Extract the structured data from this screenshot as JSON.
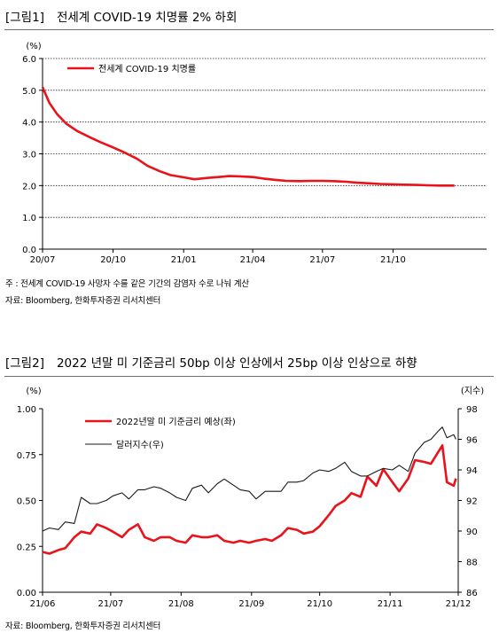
{
  "figure1": {
    "tag": "[그림1]",
    "title": "전세계 COVID-19 치명률 2% 하회",
    "note": "주 : 전세계 COVID-19 사망자 수를 같은 기간의 감염자 수로 나눠 계산",
    "source": "자료: Bloomberg, 한화투자증권 리서치센터"
  },
  "figure2": {
    "tag": "[그림2]",
    "title": "2022 년말 미 기준금리 50bp 이상 인상에서 25bp 이상 인상으로 하향",
    "source": "자료: Bloomberg, 한화투자증권 리서치센터"
  },
  "chart_data": [
    {
      "type": "line",
      "yunit": "(%)",
      "ylim": [
        0,
        6
      ],
      "yticks": [
        "0.0",
        "1.0",
        "2.0",
        "3.0",
        "4.0",
        "5.0",
        "6.0"
      ],
      "xticks": [
        "20/07",
        "20/10",
        "21/01",
        "21/04",
        "21/07",
        "21/10"
      ],
      "xlim": [
        "2020-07-01",
        "2022-01-31"
      ],
      "grid": "horizontal dotted",
      "legend_position": "top-left",
      "series": [
        {
          "name": "전세계  COVID-19  치명률",
          "color": "#e8131b",
          "points": [
            [
              "2020-07-01",
              5.1
            ],
            [
              "2020-07-10",
              4.6
            ],
            [
              "2020-07-20",
              4.25
            ],
            [
              "2020-08-01",
              3.95
            ],
            [
              "2020-08-15",
              3.72
            ],
            [
              "2020-09-01",
              3.52
            ],
            [
              "2020-09-15",
              3.36
            ],
            [
              "2020-10-01",
              3.2
            ],
            [
              "2020-10-15",
              3.05
            ],
            [
              "2020-11-01",
              2.85
            ],
            [
              "2020-11-15",
              2.62
            ],
            [
              "2020-12-01",
              2.45
            ],
            [
              "2020-12-15",
              2.33
            ],
            [
              "2021-01-01",
              2.26
            ],
            [
              "2021-01-15",
              2.2
            ],
            [
              "2021-02-01",
              2.24
            ],
            [
              "2021-02-15",
              2.27
            ],
            [
              "2021-03-01",
              2.3
            ],
            [
              "2021-03-15",
              2.29
            ],
            [
              "2021-04-01",
              2.27
            ],
            [
              "2021-04-15",
              2.22
            ],
            [
              "2021-05-01",
              2.18
            ],
            [
              "2021-05-15",
              2.15
            ],
            [
              "2021-06-01",
              2.14
            ],
            [
              "2021-06-15",
              2.15
            ],
            [
              "2021-07-01",
              2.15
            ],
            [
              "2021-07-15",
              2.14
            ],
            [
              "2021-08-01",
              2.12
            ],
            [
              "2021-08-15",
              2.09
            ],
            [
              "2021-09-01",
              2.07
            ],
            [
              "2021-09-15",
              2.05
            ],
            [
              "2021-10-01",
              2.04
            ],
            [
              "2021-10-15",
              2.03
            ],
            [
              "2021-11-01",
              2.02
            ],
            [
              "2021-11-15",
              2.01
            ],
            [
              "2021-12-01",
              2.0
            ],
            [
              "2021-12-20",
              2.0
            ]
          ]
        }
      ]
    },
    {
      "type": "line",
      "yunit_left": "(%)",
      "yunit_right": "(지수)",
      "ylim_left": [
        0,
        1
      ],
      "ylim_right": [
        86,
        98
      ],
      "yticks_left": [
        "0.00",
        "0.25",
        "0.50",
        "0.75",
        "1.00"
      ],
      "yticks_right": [
        "86",
        "88",
        "90",
        "92",
        "94",
        "96",
        "98"
      ],
      "xticks": [
        "21/06",
        "21/07",
        "21/08",
        "21/09",
        "21/10",
        "21/11",
        "21/12"
      ],
      "xlim": [
        "2021-06-01",
        "2021-12-01"
      ],
      "legend_position": "top-left",
      "series": [
        {
          "name": "2022년말  미 기준금리  예상(좌)",
          "axis": "left",
          "color": "#e8131b",
          "points": [
            [
              "2021-06-01",
              0.22
            ],
            [
              "2021-06-04",
              0.21
            ],
            [
              "2021-06-08",
              0.23
            ],
            [
              "2021-06-11",
              0.24
            ],
            [
              "2021-06-15",
              0.3
            ],
            [
              "2021-06-18",
              0.33
            ],
            [
              "2021-06-22",
              0.32
            ],
            [
              "2021-06-25",
              0.37
            ],
            [
              "2021-06-29",
              0.35
            ],
            [
              "2021-07-02",
              0.33
            ],
            [
              "2021-07-06",
              0.3
            ],
            [
              "2021-07-09",
              0.34
            ],
            [
              "2021-07-13",
              0.37
            ],
            [
              "2021-07-16",
              0.3
            ],
            [
              "2021-07-20",
              0.28
            ],
            [
              "2021-07-23",
              0.3
            ],
            [
              "2021-07-27",
              0.3
            ],
            [
              "2021-07-30",
              0.28
            ],
            [
              "2021-08-03",
              0.27
            ],
            [
              "2021-08-06",
              0.31
            ],
            [
              "2021-08-10",
              0.3
            ],
            [
              "2021-08-13",
              0.3
            ],
            [
              "2021-08-17",
              0.31
            ],
            [
              "2021-08-20",
              0.28
            ],
            [
              "2021-08-24",
              0.27
            ],
            [
              "2021-08-27",
              0.28
            ],
            [
              "2021-08-31",
              0.27
            ],
            [
              "2021-09-03",
              0.28
            ],
            [
              "2021-09-07",
              0.29
            ],
            [
              "2021-09-10",
              0.28
            ],
            [
              "2021-09-14",
              0.31
            ],
            [
              "2021-09-17",
              0.35
            ],
            [
              "2021-09-21",
              0.34
            ],
            [
              "2021-09-24",
              0.32
            ],
            [
              "2021-09-28",
              0.33
            ],
            [
              "2021-10-01",
              0.36
            ],
            [
              "2021-10-05",
              0.42
            ],
            [
              "2021-10-08",
              0.47
            ],
            [
              "2021-10-12",
              0.5
            ],
            [
              "2021-10-15",
              0.54
            ],
            [
              "2021-10-19",
              0.52
            ],
            [
              "2021-10-22",
              0.63
            ],
            [
              "2021-10-26",
              0.58
            ],
            [
              "2021-10-29",
              0.67
            ],
            [
              "2021-11-02",
              0.6
            ],
            [
              "2021-11-05",
              0.55
            ],
            [
              "2021-11-09",
              0.62
            ],
            [
              "2021-11-12",
              0.72
            ],
            [
              "2021-11-16",
              0.71
            ],
            [
              "2021-11-19",
              0.7
            ],
            [
              "2021-11-22",
              0.76
            ],
            [
              "2021-11-24",
              0.8
            ],
            [
              "2021-11-26",
              0.6
            ],
            [
              "2021-11-29",
              0.58
            ],
            [
              "2021-11-30",
              0.62
            ]
          ]
        },
        {
          "name": "달러지수(우)",
          "axis": "right",
          "color": "#1a1a1a",
          "points": [
            [
              "2021-06-01",
              90.0
            ],
            [
              "2021-06-04",
              90.2
            ],
            [
              "2021-06-08",
              90.1
            ],
            [
              "2021-06-11",
              90.6
            ],
            [
              "2021-06-15",
              90.5
            ],
            [
              "2021-06-18",
              92.2
            ],
            [
              "2021-06-22",
              91.8
            ],
            [
              "2021-06-25",
              91.8
            ],
            [
              "2021-06-29",
              92.0
            ],
            [
              "2021-07-02",
              92.3
            ],
            [
              "2021-07-06",
              92.5
            ],
            [
              "2021-07-09",
              92.1
            ],
            [
              "2021-07-13",
              92.7
            ],
            [
              "2021-07-16",
              92.7
            ],
            [
              "2021-07-20",
              92.9
            ],
            [
              "2021-07-23",
              92.8
            ],
            [
              "2021-07-27",
              92.5
            ],
            [
              "2021-07-30",
              92.2
            ],
            [
              "2021-08-03",
              92.0
            ],
            [
              "2021-08-06",
              92.8
            ],
            [
              "2021-08-10",
              93.0
            ],
            [
              "2021-08-13",
              92.5
            ],
            [
              "2021-08-17",
              93.1
            ],
            [
              "2021-08-20",
              93.4
            ],
            [
              "2021-08-24",
              93.0
            ],
            [
              "2021-08-27",
              92.7
            ],
            [
              "2021-08-31",
              92.6
            ],
            [
              "2021-09-03",
              92.1
            ],
            [
              "2021-09-07",
              92.6
            ],
            [
              "2021-09-10",
              92.6
            ],
            [
              "2021-09-14",
              92.6
            ],
            [
              "2021-09-17",
              93.2
            ],
            [
              "2021-09-21",
              93.2
            ],
            [
              "2021-09-24",
              93.3
            ],
            [
              "2021-09-28",
              93.8
            ],
            [
              "2021-10-01",
              94.0
            ],
            [
              "2021-10-05",
              93.9
            ],
            [
              "2021-10-08",
              94.1
            ],
            [
              "2021-10-12",
              94.5
            ],
            [
              "2021-10-15",
              93.9
            ],
            [
              "2021-10-19",
              93.6
            ],
            [
              "2021-10-22",
              93.6
            ],
            [
              "2021-10-26",
              93.9
            ],
            [
              "2021-10-29",
              94.1
            ],
            [
              "2021-11-02",
              94.0
            ],
            [
              "2021-11-05",
              94.3
            ],
            [
              "2021-11-09",
              93.9
            ],
            [
              "2021-11-12",
              95.1
            ],
            [
              "2021-11-16",
              95.8
            ],
            [
              "2021-11-19",
              96.0
            ],
            [
              "2021-11-22",
              96.5
            ],
            [
              "2021-11-24",
              96.8
            ],
            [
              "2021-11-26",
              96.1
            ],
            [
              "2021-11-29",
              96.3
            ],
            [
              "2021-11-30",
              96.0
            ]
          ]
        }
      ]
    }
  ]
}
